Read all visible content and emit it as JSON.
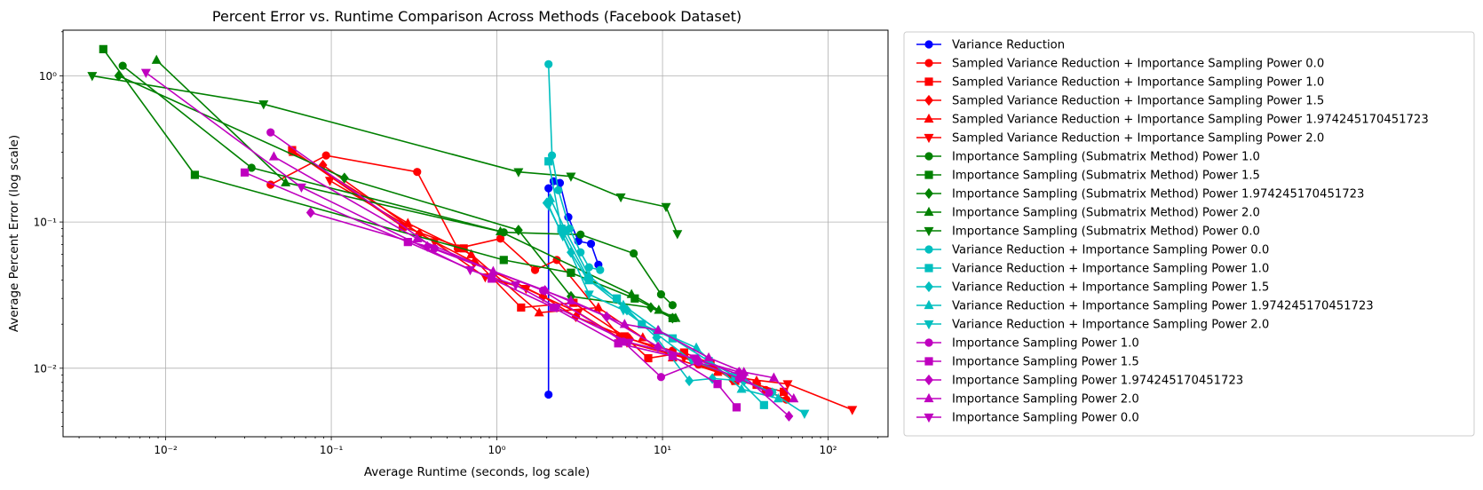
{
  "chart_data": {
    "type": "line",
    "title": "Percent Error vs. Runtime Comparison Across Methods (Facebook Dataset)",
    "xlabel": "Average Runtime (seconds, log scale)",
    "ylabel": "Average Percent Error (log scale)",
    "xscale": "log",
    "yscale": "log",
    "xlim": [
      0.0024,
      230
    ],
    "ylim": [
      0.0034,
      2.05
    ],
    "x_ticks": [
      {
        "value": 0.01,
        "label": "10⁻²"
      },
      {
        "value": 0.1,
        "label": "10⁻¹"
      },
      {
        "value": 1,
        "label": "10⁰"
      },
      {
        "value": 10,
        "label": "10¹"
      },
      {
        "value": 100,
        "label": "10²"
      }
    ],
    "y_ticks": [
      {
        "value": 0.01,
        "label": "10⁻²"
      },
      {
        "value": 0.1,
        "label": "10⁻¹"
      },
      {
        "value": 1,
        "label": "10⁰"
      }
    ],
    "grid": true,
    "legend_position": "outside-right",
    "series": [
      {
        "name": "Variance Reduction",
        "color": "#0000ff",
        "marker": "circle",
        "points": [
          [
            2.05,
            0.0066
          ],
          [
            2.05,
            0.17
          ],
          [
            2.2,
            0.19
          ],
          [
            2.4,
            0.185
          ],
          [
            2.7,
            0.108
          ],
          [
            3.1,
            0.074
          ],
          [
            3.7,
            0.071
          ],
          [
            4.1,
            0.051
          ]
        ]
      },
      {
        "name": "Sampled Variance Reduction + Importance Sampling Power 0.0",
        "color": "#ff0000",
        "marker": "circle",
        "points": [
          [
            0.043,
            0.18
          ],
          [
            0.093,
            0.285
          ],
          [
            0.33,
            0.22
          ],
          [
            0.58,
            0.066
          ],
          [
            1.05,
            0.077
          ],
          [
            1.7,
            0.047
          ],
          [
            2.3,
            0.055
          ],
          [
            5.5,
            0.0165
          ],
          [
            11.5,
            0.0132
          ],
          [
            16.5,
            0.0106
          ],
          [
            26.5,
            0.0088
          ],
          [
            42,
            0.0071
          ],
          [
            56,
            0.0061
          ]
        ]
      },
      {
        "name": "Sampled Variance Reduction + Importance Sampling Power 1.0",
        "color": "#ff0000",
        "marker": "square",
        "points": [
          [
            0.058,
            0.31
          ],
          [
            0.27,
            0.093
          ],
          [
            0.63,
            0.066
          ],
          [
            1.4,
            0.026
          ],
          [
            2.9,
            0.028
          ],
          [
            5.9,
            0.0165
          ],
          [
            8.2,
            0.0117
          ],
          [
            13.5,
            0.0128
          ],
          [
            19.5,
            0.0108
          ],
          [
            27.5,
            0.0082
          ],
          [
            37,
            0.0077
          ],
          [
            54,
            0.0069
          ]
        ]
      },
      {
        "name": "Sampled Variance Reduction + Importance Sampling Power 1.5",
        "color": "#ff0000",
        "marker": "diamond",
        "points": [
          [
            0.089,
            0.245
          ],
          [
            0.34,
            0.083
          ],
          [
            0.73,
            0.053
          ],
          [
            1.9,
            0.031
          ],
          [
            3.0,
            0.0225
          ],
          [
            6.3,
            0.016
          ],
          [
            11.5,
            0.0125
          ],
          [
            19,
            0.0108
          ],
          [
            26.5,
            0.0083
          ]
        ]
      },
      {
        "name": "Sampled Variance Reduction + Importance Sampling Power 1.974245170451723",
        "color": "#ff0000",
        "marker": "triangle-up",
        "points": [
          [
            0.059,
            0.3
          ],
          [
            0.29,
            0.098
          ],
          [
            0.7,
            0.06
          ],
          [
            1.8,
            0.024
          ],
          [
            4.1,
            0.026
          ],
          [
            7.6,
            0.0162
          ],
          [
            11.5,
            0.0118
          ],
          [
            21.5,
            0.0094
          ],
          [
            37,
            0.0082
          ]
        ]
      },
      {
        "name": "Sampled Variance Reduction + Importance Sampling Power 2.0",
        "color": "#ff0000",
        "marker": "triangle-down",
        "points": [
          [
            0.098,
            0.192
          ],
          [
            0.42,
            0.073
          ],
          [
            0.85,
            0.042
          ],
          [
            1.5,
            0.035
          ],
          [
            3.1,
            0.024
          ],
          [
            6.1,
            0.015
          ],
          [
            13.5,
            0.0118
          ],
          [
            26,
            0.0087
          ],
          [
            57,
            0.0078
          ],
          [
            140,
            0.0052
          ]
        ]
      },
      {
        "name": "Importance Sampling (Submatrix Method) Power 1.0",
        "color": "#008000",
        "marker": "circle",
        "points": [
          [
            0.0055,
            1.17
          ],
          [
            0.033,
            0.235
          ],
          [
            1.1,
            0.085
          ],
          [
            3.2,
            0.082
          ],
          [
            6.7,
            0.061
          ],
          [
            9.8,
            0.032
          ],
          [
            11.5,
            0.027
          ]
        ]
      },
      {
        "name": "Importance Sampling (Submatrix Method) Power 1.5",
        "color": "#008000",
        "marker": "square",
        "points": [
          [
            0.0042,
            1.52
          ],
          [
            0.015,
            0.21
          ],
          [
            1.1,
            0.055
          ],
          [
            2.8,
            0.045
          ],
          [
            6.8,
            0.03
          ],
          [
            11.5,
            0.022
          ]
        ]
      },
      {
        "name": "Importance Sampling (Submatrix Method) Power 1.974245170451723",
        "color": "#008000",
        "marker": "diamond",
        "points": [
          [
            0.0052,
            1.0
          ],
          [
            0.12,
            0.2
          ],
          [
            1.35,
            0.088
          ],
          [
            2.8,
            0.031
          ],
          [
            8.5,
            0.026
          ],
          [
            11.5,
            0.022
          ]
        ]
      },
      {
        "name": "Importance Sampling (Submatrix Method) Power 2.0",
        "color": "#008000",
        "marker": "triangle-up",
        "points": [
          [
            0.0088,
            1.28
          ],
          [
            0.053,
            0.186
          ],
          [
            1.05,
            0.086
          ],
          [
            6.5,
            0.032
          ],
          [
            9.5,
            0.025
          ],
          [
            12,
            0.022
          ]
        ]
      },
      {
        "name": "Importance Sampling (Submatrix Method) Power 0.0",
        "color": "#008000",
        "marker": "triangle-down",
        "points": [
          [
            0.0036,
            1.0
          ],
          [
            0.039,
            0.64
          ],
          [
            1.35,
            0.22
          ],
          [
            2.8,
            0.205
          ],
          [
            5.6,
            0.148
          ],
          [
            10.5,
            0.127
          ],
          [
            12.3,
            0.083
          ]
        ]
      },
      {
        "name": "Variance Reduction + Importance Sampling Power 0.0",
        "color": "#00bfbf",
        "marker": "circle",
        "points": [
          [
            2.05,
            1.2
          ],
          [
            2.15,
            0.285
          ],
          [
            2.35,
            0.165
          ],
          [
            2.75,
            0.09
          ],
          [
            3.2,
            0.062
          ],
          [
            3.6,
            0.049
          ],
          [
            4.2,
            0.047
          ]
        ]
      },
      {
        "name": "Variance Reduction + Importance Sampling Power 1.0",
        "color": "#00bfbf",
        "marker": "square",
        "points": [
          [
            2.05,
            0.26
          ],
          [
            2.45,
            0.09
          ],
          [
            3.6,
            0.04
          ],
          [
            5.3,
            0.03
          ],
          [
            7.5,
            0.02
          ],
          [
            11.5,
            0.016
          ],
          [
            19,
            0.0112
          ],
          [
            27.5,
            0.0088
          ],
          [
            41,
            0.0056
          ]
        ]
      },
      {
        "name": "Variance Reduction + Importance Sampling Power 1.5",
        "color": "#00bfbf",
        "marker": "diamond",
        "points": [
          [
            2.0,
            0.135
          ],
          [
            2.8,
            0.062
          ],
          [
            3.5,
            0.041
          ],
          [
            6.1,
            0.025
          ],
          [
            9.2,
            0.0162
          ],
          [
            14.5,
            0.0082
          ],
          [
            20,
            0.0085
          ],
          [
            31,
            0.0082
          ],
          [
            46,
            0.0068
          ]
        ]
      },
      {
        "name": "Variance Reduction + Importance Sampling Power 1.974245170451723",
        "color": "#00bfbf",
        "marker": "triangle-up",
        "points": [
          [
            2.1,
            0.145
          ],
          [
            2.6,
            0.087
          ],
          [
            3.6,
            0.043
          ],
          [
            5.8,
            0.027
          ],
          [
            9.5,
            0.018
          ],
          [
            16,
            0.0138
          ],
          [
            30,
            0.0072
          ],
          [
            50,
            0.0062
          ]
        ]
      },
      {
        "name": "Variance Reduction + Importance Sampling Power 2.0",
        "color": "#00bfbf",
        "marker": "triangle-down",
        "points": [
          [
            2.05,
            0.13
          ],
          [
            2.5,
            0.08
          ],
          [
            3.6,
            0.032
          ],
          [
            5.8,
            0.025
          ],
          [
            9.2,
            0.0172
          ],
          [
            15,
            0.0113
          ],
          [
            28,
            0.0087
          ],
          [
            46,
            0.0068
          ],
          [
            72,
            0.0049
          ]
        ]
      },
      {
        "name": "Importance Sampling Power 1.0",
        "color": "#bf00bf",
        "marker": "circle",
        "points": [
          [
            0.043,
            0.41
          ],
          [
            0.42,
            0.066
          ],
          [
            1.9,
            0.034
          ],
          [
            5.8,
            0.0152
          ],
          [
            9.8,
            0.0087
          ],
          [
            16.5,
            0.011
          ],
          [
            29,
            0.0085
          ],
          [
            44,
            0.0068
          ]
        ]
      },
      {
        "name": "Importance Sampling Power 1.5",
        "color": "#bf00bf",
        "marker": "square",
        "points": [
          [
            0.03,
            0.218
          ],
          [
            0.29,
            0.073
          ],
          [
            0.93,
            0.041
          ],
          [
            2.2,
            0.026
          ],
          [
            5.4,
            0.0148
          ],
          [
            11.5,
            0.0121
          ],
          [
            21.5,
            0.0078
          ],
          [
            28,
            0.0054
          ]
        ]
      },
      {
        "name": "Importance Sampling Power 1.974245170451723",
        "color": "#bf00bf",
        "marker": "diamond",
        "points": [
          [
            0.075,
            0.116
          ],
          [
            0.38,
            0.068
          ],
          [
            1.95,
            0.034
          ],
          [
            4.6,
            0.0225
          ],
          [
            9.4,
            0.014
          ],
          [
            16.5,
            0.0113
          ],
          [
            29,
            0.0094
          ],
          [
            58,
            0.0047
          ]
        ]
      },
      {
        "name": "Importance Sampling Power 2.0",
        "color": "#bf00bf",
        "marker": "triangle-up",
        "points": [
          [
            0.045,
            0.28
          ],
          [
            0.33,
            0.077
          ],
          [
            0.95,
            0.046
          ],
          [
            2.8,
            0.029
          ],
          [
            5.9,
            0.02
          ],
          [
            9.4,
            0.0182
          ],
          [
            19,
            0.0118
          ],
          [
            31,
            0.0094
          ],
          [
            47,
            0.0086
          ],
          [
            62,
            0.0062
          ]
        ]
      },
      {
        "name": "Importance Sampling Power 0.0",
        "color": "#bf00bf",
        "marker": "triangle-down",
        "points": [
          [
            0.0076,
            1.05
          ],
          [
            0.066,
            0.173
          ],
          [
            0.69,
            0.047
          ],
          [
            1.3,
            0.037
          ],
          [
            2.3,
            0.026
          ],
          [
            6.3,
            0.015
          ],
          [
            15.5,
            0.0117
          ],
          [
            31,
            0.0088
          ]
        ]
      }
    ]
  }
}
